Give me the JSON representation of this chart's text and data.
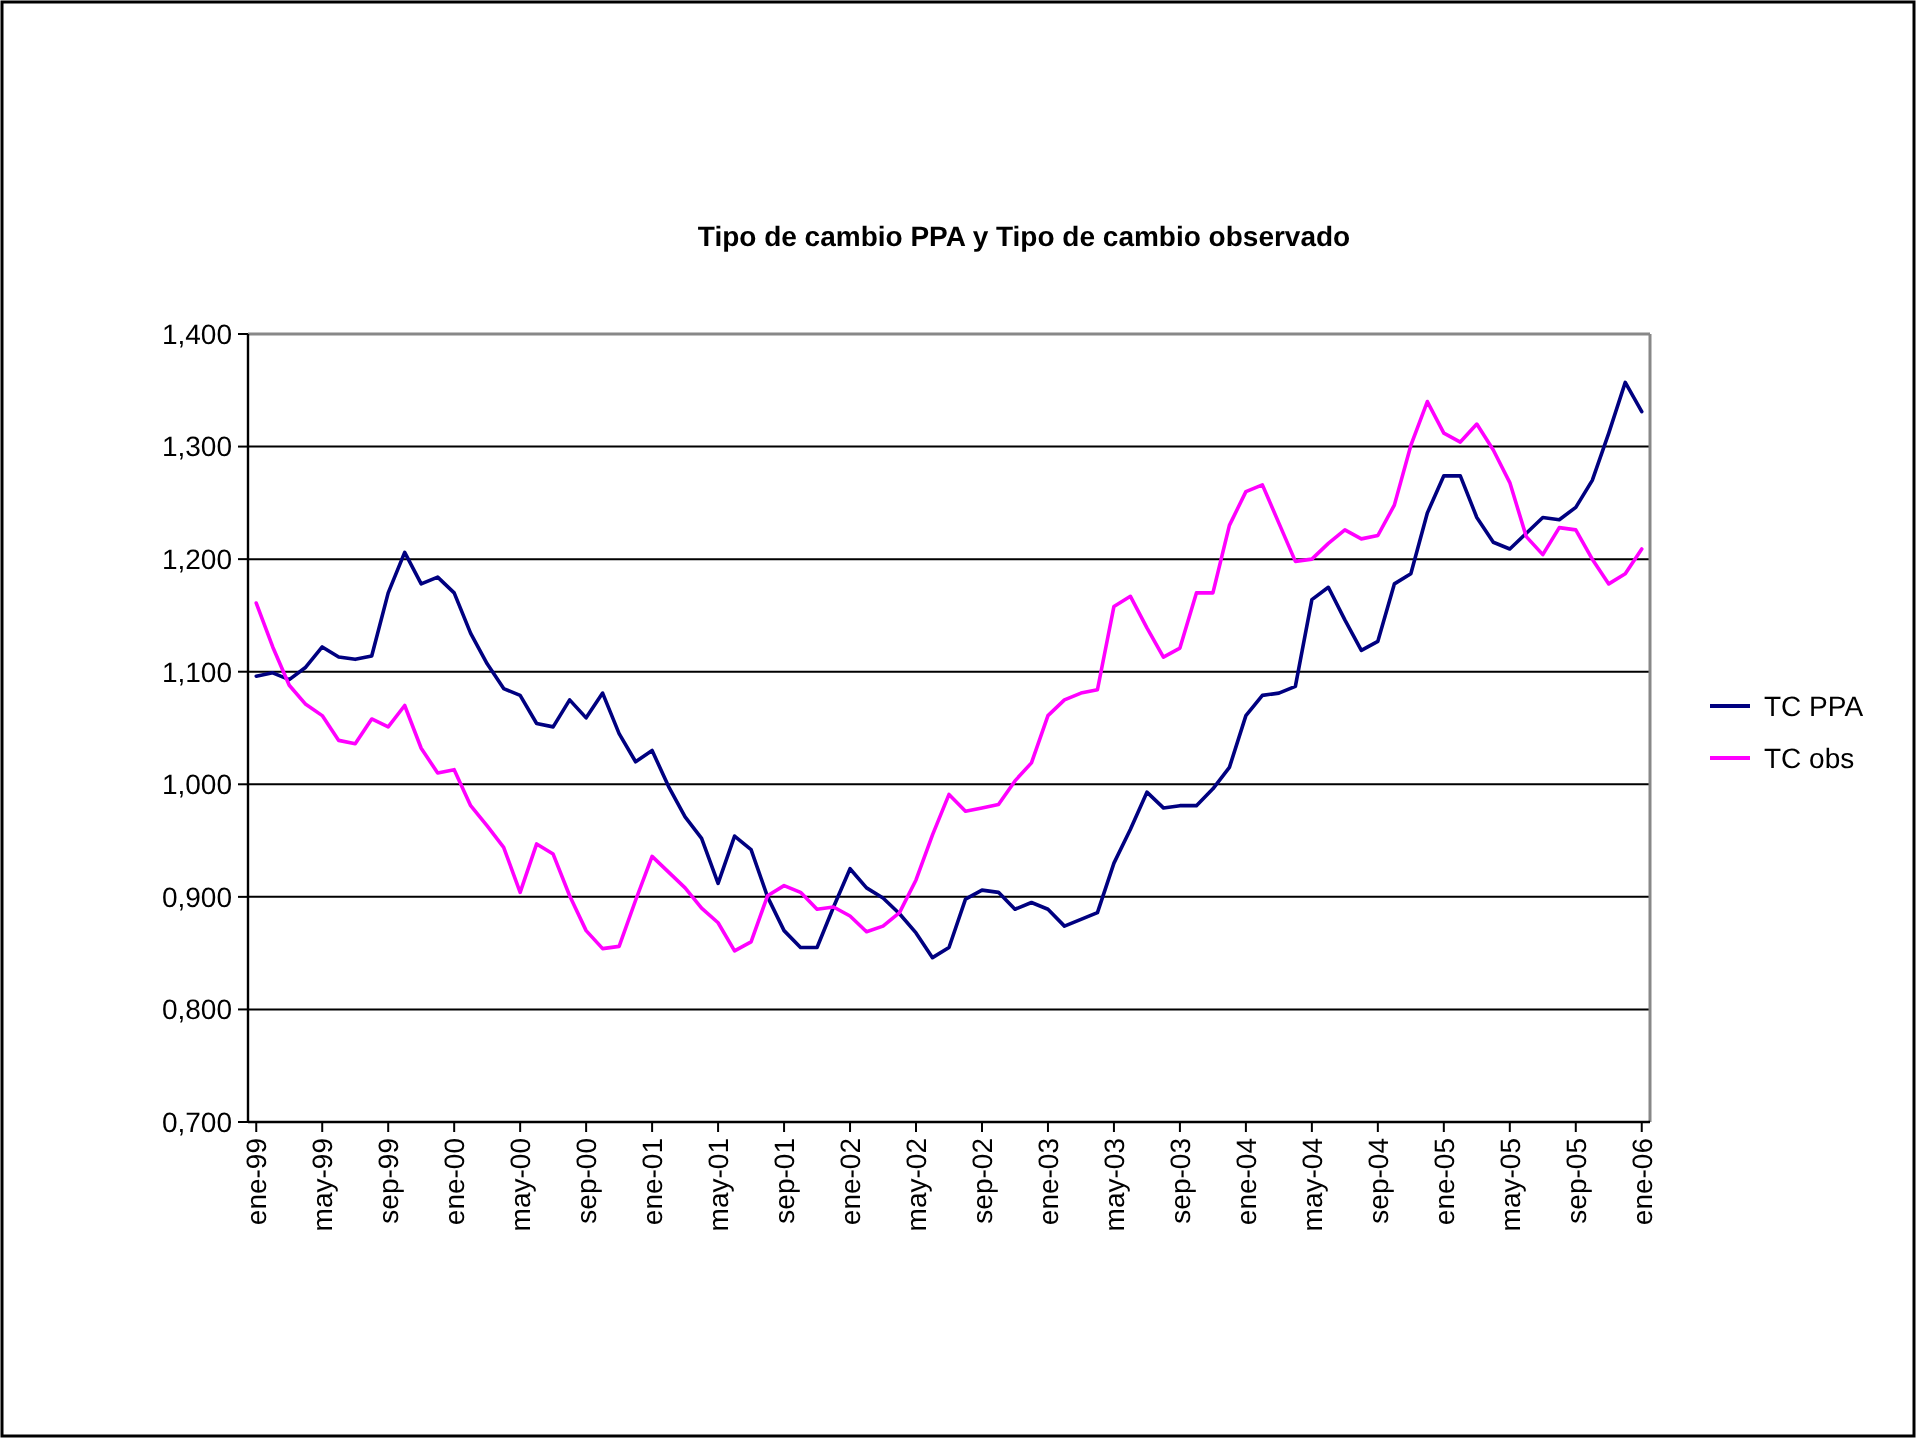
{
  "chart_data": {
    "type": "line",
    "title": "Tipo de cambio PPA y Tipo de cambio observado",
    "categories": [
      "ene-99",
      null,
      null,
      null,
      "may-99",
      null,
      null,
      null,
      "sep-99",
      null,
      null,
      null,
      "ene-00",
      null,
      null,
      null,
      "may-00",
      null,
      null,
      null,
      "sep-00",
      null,
      null,
      null,
      "ene-01",
      null,
      null,
      null,
      "may-01",
      null,
      null,
      null,
      "sep-01",
      null,
      null,
      null,
      "ene-02",
      null,
      null,
      null,
      "may-02",
      null,
      null,
      null,
      "sep-02",
      null,
      null,
      null,
      "ene-03",
      null,
      null,
      null,
      "may-03",
      null,
      null,
      null,
      "sep-03",
      null,
      null,
      null,
      "ene-04",
      null,
      null,
      null,
      "may-04",
      null,
      null,
      null,
      "sep-04",
      null,
      null,
      null,
      "ene-05",
      null,
      null,
      null,
      "may-05",
      null,
      null,
      null,
      "sep-05",
      null,
      null,
      null,
      "ene-06"
    ],
    "series": [
      {
        "name": "TC PPA",
        "color": "#000080",
        "values": [
          1.096,
          1.099,
          1.093,
          1.104,
          1.122,
          1.113,
          1.111,
          1.114,
          1.17,
          1.206,
          1.178,
          1.184,
          1.17,
          1.134,
          1.107,
          1.085,
          1.079,
          1.054,
          1.051,
          1.075,
          1.059,
          1.081,
          1.045,
          1.02,
          1.03,
          0.998,
          0.971,
          0.952,
          0.912,
          0.954,
          0.942,
          0.9,
          0.87,
          0.855,
          0.855,
          0.891,
          0.925,
          0.908,
          0.899,
          0.885,
          0.868,
          0.846,
          0.855,
          0.898,
          0.906,
          0.904,
          0.889,
          0.895,
          0.889,
          0.874,
          0.88,
          0.886,
          0.93,
          0.96,
          0.993,
          0.979,
          0.981,
          0.981,
          0.996,
          1.015,
          1.061,
          1.079,
          1.081,
          1.087,
          1.164,
          1.175,
          1.146,
          1.119,
          1.127,
          1.178,
          1.187,
          1.241,
          1.274,
          1.274,
          1.237,
          1.215,
          1.209,
          1.223,
          1.237,
          1.235,
          1.246,
          1.27,
          1.312,
          1.357,
          1.331
        ]
      },
      {
        "name": "TC obs",
        "color": "#ff00ff",
        "values": [
          1.161,
          1.122,
          1.088,
          1.071,
          1.061,
          1.039,
          1.036,
          1.058,
          1.051,
          1.07,
          1.032,
          1.01,
          1.013,
          0.981,
          0.963,
          0.944,
          0.904,
          0.947,
          0.938,
          0.901,
          0.87,
          0.854,
          0.856,
          0.897,
          0.936,
          0.922,
          0.908,
          0.89,
          0.877,
          0.852,
          0.86,
          0.901,
          0.91,
          0.904,
          0.889,
          0.891,
          0.883,
          0.869,
          0.874,
          0.886,
          0.915,
          0.955,
          0.991,
          0.976,
          0.979,
          0.982,
          1.003,
          1.019,
          1.061,
          1.075,
          1.081,
          1.084,
          1.158,
          1.167,
          1.139,
          1.113,
          1.121,
          1.17,
          1.17,
          1.23,
          1.26,
          1.266,
          1.232,
          1.198,
          1.2,
          1.214,
          1.226,
          1.218,
          1.221,
          1.248,
          1.301,
          1.34,
          1.312,
          1.304,
          1.32,
          1.297,
          1.268,
          1.22,
          1.204,
          1.228,
          1.226,
          1.2,
          1.178,
          1.187,
          1.209
        ]
      }
    ],
    "ylim": [
      0.7,
      1.4
    ],
    "yticks": [
      {
        "value": 0.7,
        "label": "0,700"
      },
      {
        "value": 0.8,
        "label": "0,800"
      },
      {
        "value": 0.9,
        "label": "0,900"
      },
      {
        "value": 1.0,
        "label": "1,000"
      },
      {
        "value": 1.1,
        "label": "1,100"
      },
      {
        "value": 1.2,
        "label": "1,200"
      },
      {
        "value": 1.3,
        "label": "1,300"
      },
      {
        "value": 1.4,
        "label": "1,400"
      }
    ],
    "grid": "y",
    "legend": "right",
    "line_style": "solid"
  }
}
